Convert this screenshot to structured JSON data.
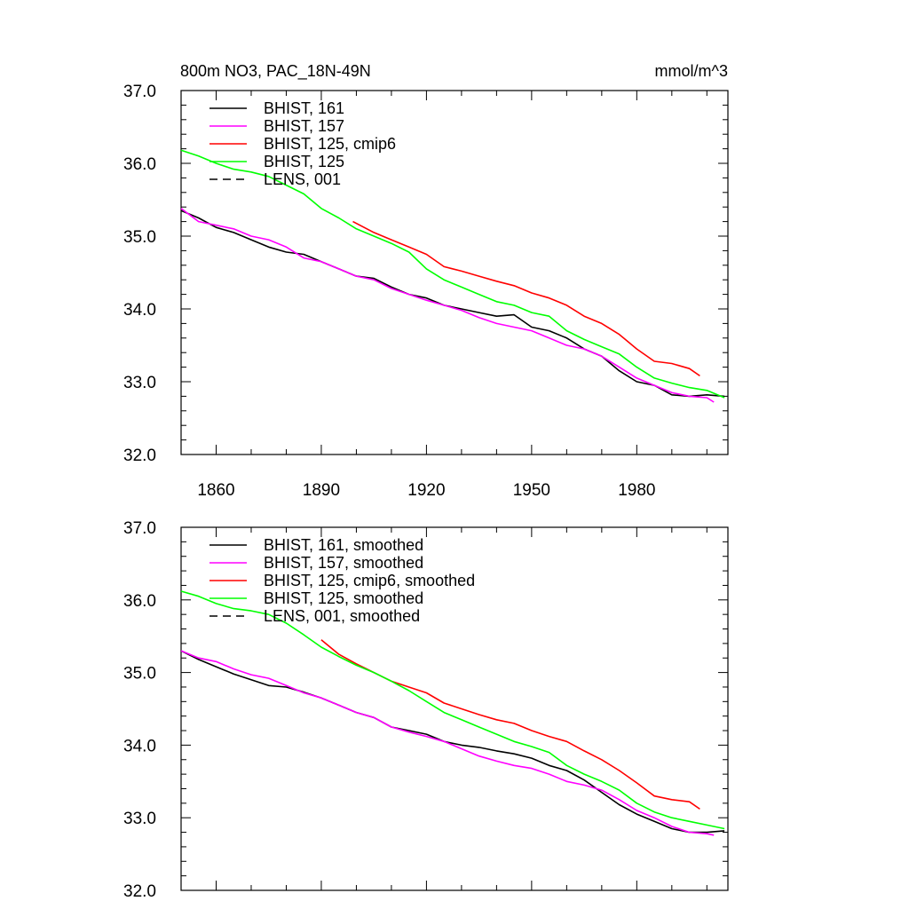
{
  "chart_data": [
    {
      "type": "line",
      "title": "800m NO3, PAC_18N-49N",
      "units": "mmol/m^3",
      "xlim": [
        1850,
        2006
      ],
      "ylim": [
        32.0,
        37.0
      ],
      "x_ticks": [
        "1860",
        "1890",
        "1920",
        "1950",
        "1980"
      ],
      "y_ticks": [
        "32.0",
        "33.0",
        "34.0",
        "35.0",
        "36.0",
        "37.0"
      ],
      "legend_position": "top-left",
      "legend": [
        "BHIST, 161",
        "BHIST, 157",
        "BHIST, 125, cmip6",
        "BHIST, 125",
        "LENS, 001"
      ],
      "series": [
        {
          "name": "BHIST, 161",
          "color": "#000000",
          "dash": "solid",
          "x": [
            1850,
            1855,
            1860,
            1865,
            1870,
            1875,
            1880,
            1885,
            1890,
            1895,
            1900,
            1905,
            1910,
            1915,
            1920,
            1925,
            1930,
            1935,
            1940,
            1945,
            1950,
            1955,
            1960,
            1965,
            1970,
            1975,
            1980,
            1985,
            1990,
            1995,
            2000,
            2005
          ],
          "y": [
            35.35,
            35.25,
            35.12,
            35.05,
            34.95,
            34.85,
            34.78,
            34.75,
            34.65,
            34.55,
            34.45,
            34.42,
            34.3,
            34.2,
            34.15,
            34.05,
            34.0,
            33.95,
            33.9,
            33.92,
            33.75,
            33.7,
            33.6,
            33.45,
            33.35,
            33.15,
            33.0,
            32.95,
            32.82,
            32.8,
            32.82,
            32.8
          ]
        },
        {
          "name": "BHIST, 157",
          "color": "#ff00ff",
          "dash": "solid",
          "x": [
            1850,
            1855,
            1860,
            1865,
            1870,
            1875,
            1880,
            1885,
            1890,
            1895,
            1900,
            1905,
            1910,
            1915,
            1920,
            1925,
            1930,
            1935,
            1940,
            1945,
            1950,
            1955,
            1960,
            1965,
            1970,
            1975,
            1980,
            1985,
            1990,
            1995,
            2000,
            2002
          ],
          "y": [
            35.38,
            35.2,
            35.15,
            35.1,
            35.0,
            34.95,
            34.85,
            34.7,
            34.65,
            34.55,
            34.45,
            34.4,
            34.28,
            34.2,
            34.12,
            34.05,
            33.98,
            33.88,
            33.8,
            33.75,
            33.7,
            33.6,
            33.5,
            33.45,
            33.35,
            33.2,
            33.05,
            32.95,
            32.85,
            32.8,
            32.78,
            32.72
          ]
        },
        {
          "name": "BHIST, 125, cmip6",
          "color": "#ff0000",
          "dash": "solid",
          "x": [
            1899,
            1905,
            1910,
            1915,
            1920,
            1925,
            1930,
            1935,
            1940,
            1945,
            1950,
            1955,
            1960,
            1965,
            1970,
            1975,
            1980,
            1985,
            1990,
            1995,
            1998
          ],
          "y": [
            35.2,
            35.05,
            34.95,
            34.85,
            34.75,
            34.58,
            34.52,
            34.45,
            34.38,
            34.32,
            34.22,
            34.15,
            34.05,
            33.9,
            33.8,
            33.65,
            33.45,
            33.28,
            33.25,
            33.18,
            33.08
          ]
        },
        {
          "name": "BHIST, 125",
          "color": "#00ff00",
          "dash": "solid",
          "x": [
            1850,
            1855,
            1860,
            1865,
            1870,
            1875,
            1880,
            1885,
            1890,
            1895,
            1900,
            1905,
            1910,
            1915,
            1920,
            1925,
            1930,
            1935,
            1940,
            1945,
            1950,
            1955,
            1960,
            1965,
            1970,
            1975,
            1980,
            1985,
            1990,
            1995,
            2000,
            2005
          ],
          "y": [
            36.18,
            36.1,
            36.0,
            35.92,
            35.88,
            35.82,
            35.7,
            35.58,
            35.38,
            35.25,
            35.1,
            35.0,
            34.9,
            34.78,
            34.55,
            34.4,
            34.3,
            34.2,
            34.1,
            34.05,
            33.95,
            33.9,
            33.7,
            33.58,
            33.48,
            33.38,
            33.2,
            33.05,
            32.98,
            32.92,
            32.88,
            32.78
          ]
        },
        {
          "name": "LENS, 001",
          "color": "#000000",
          "dash": "dashed",
          "x": [],
          "y": []
        }
      ]
    },
    {
      "type": "line",
      "xlim": [
        1850,
        2006
      ],
      "ylim": [
        32.0,
        37.0
      ],
      "y_ticks": [
        "32.0",
        "33.0",
        "34.0",
        "35.0",
        "36.0",
        "37.0"
      ],
      "legend_position": "top-left",
      "legend": [
        "BHIST, 161, smoothed",
        "BHIST, 157, smoothed",
        "BHIST, 125, cmip6, smoothed",
        "BHIST, 125, smoothed",
        "LENS, 001, smoothed"
      ],
      "series": [
        {
          "name": "BHIST, 161, smoothed",
          "color": "#000000",
          "dash": "solid",
          "x": [
            1850,
            1855,
            1860,
            1865,
            1870,
            1875,
            1880,
            1885,
            1890,
            1895,
            1900,
            1905,
            1910,
            1915,
            1920,
            1925,
            1930,
            1935,
            1940,
            1945,
            1950,
            1955,
            1960,
            1965,
            1970,
            1975,
            1980,
            1985,
            1990,
            1995,
            2000,
            2005
          ],
          "y": [
            35.3,
            35.18,
            35.08,
            34.98,
            34.9,
            34.82,
            34.8,
            34.73,
            34.65,
            34.55,
            34.45,
            34.38,
            34.25,
            34.2,
            34.15,
            34.05,
            34.0,
            33.97,
            33.92,
            33.88,
            33.82,
            33.72,
            33.65,
            33.52,
            33.35,
            33.18,
            33.05,
            32.95,
            32.85,
            32.8,
            32.8,
            32.82
          ]
        },
        {
          "name": "BHIST, 157, smoothed",
          "color": "#ff00ff",
          "dash": "solid",
          "x": [
            1850,
            1855,
            1860,
            1865,
            1870,
            1875,
            1880,
            1885,
            1890,
            1895,
            1900,
            1905,
            1910,
            1915,
            1920,
            1925,
            1930,
            1935,
            1940,
            1945,
            1950,
            1955,
            1960,
            1965,
            1970,
            1975,
            1980,
            1985,
            1990,
            1995,
            2000,
            2002
          ],
          "y": [
            35.3,
            35.2,
            35.15,
            35.05,
            34.97,
            34.92,
            34.82,
            34.72,
            34.65,
            34.55,
            34.45,
            34.38,
            34.25,
            34.18,
            34.12,
            34.05,
            33.95,
            33.85,
            33.78,
            33.72,
            33.68,
            33.6,
            33.5,
            33.45,
            33.38,
            33.25,
            33.1,
            33.0,
            32.88,
            32.8,
            32.78,
            32.76
          ]
        },
        {
          "name": "BHIST, 125, cmip6, smoothed",
          "color": "#ff0000",
          "dash": "solid",
          "x": [
            1890,
            1895,
            1900,
            1905,
            1910,
            1915,
            1920,
            1925,
            1930,
            1935,
            1940,
            1945,
            1950,
            1955,
            1960,
            1965,
            1970,
            1975,
            1980,
            1985,
            1990,
            1995,
            1998
          ],
          "y": [
            35.45,
            35.25,
            35.12,
            35.0,
            34.88,
            34.8,
            34.72,
            34.58,
            34.5,
            34.42,
            34.35,
            34.3,
            34.2,
            34.12,
            34.05,
            33.92,
            33.8,
            33.65,
            33.48,
            33.3,
            33.25,
            33.22,
            33.12
          ]
        },
        {
          "name": "BHIST, 125, smoothed",
          "color": "#00ff00",
          "dash": "solid",
          "x": [
            1850,
            1855,
            1860,
            1865,
            1870,
            1875,
            1880,
            1885,
            1890,
            1895,
            1900,
            1905,
            1910,
            1915,
            1920,
            1925,
            1930,
            1935,
            1940,
            1945,
            1950,
            1955,
            1960,
            1965,
            1970,
            1975,
            1980,
            1985,
            1990,
            1995,
            2000,
            2005
          ],
          "y": [
            36.12,
            36.05,
            35.95,
            35.88,
            35.85,
            35.8,
            35.68,
            35.52,
            35.35,
            35.22,
            35.1,
            35.0,
            34.88,
            34.75,
            34.6,
            34.45,
            34.35,
            34.25,
            34.15,
            34.05,
            33.98,
            33.9,
            33.72,
            33.6,
            33.5,
            33.38,
            33.2,
            33.08,
            33.0,
            32.95,
            32.9,
            32.85
          ]
        },
        {
          "name": "LENS, 001, smoothed",
          "color": "#000000",
          "dash": "dashed",
          "x": [],
          "y": []
        }
      ]
    }
  ]
}
